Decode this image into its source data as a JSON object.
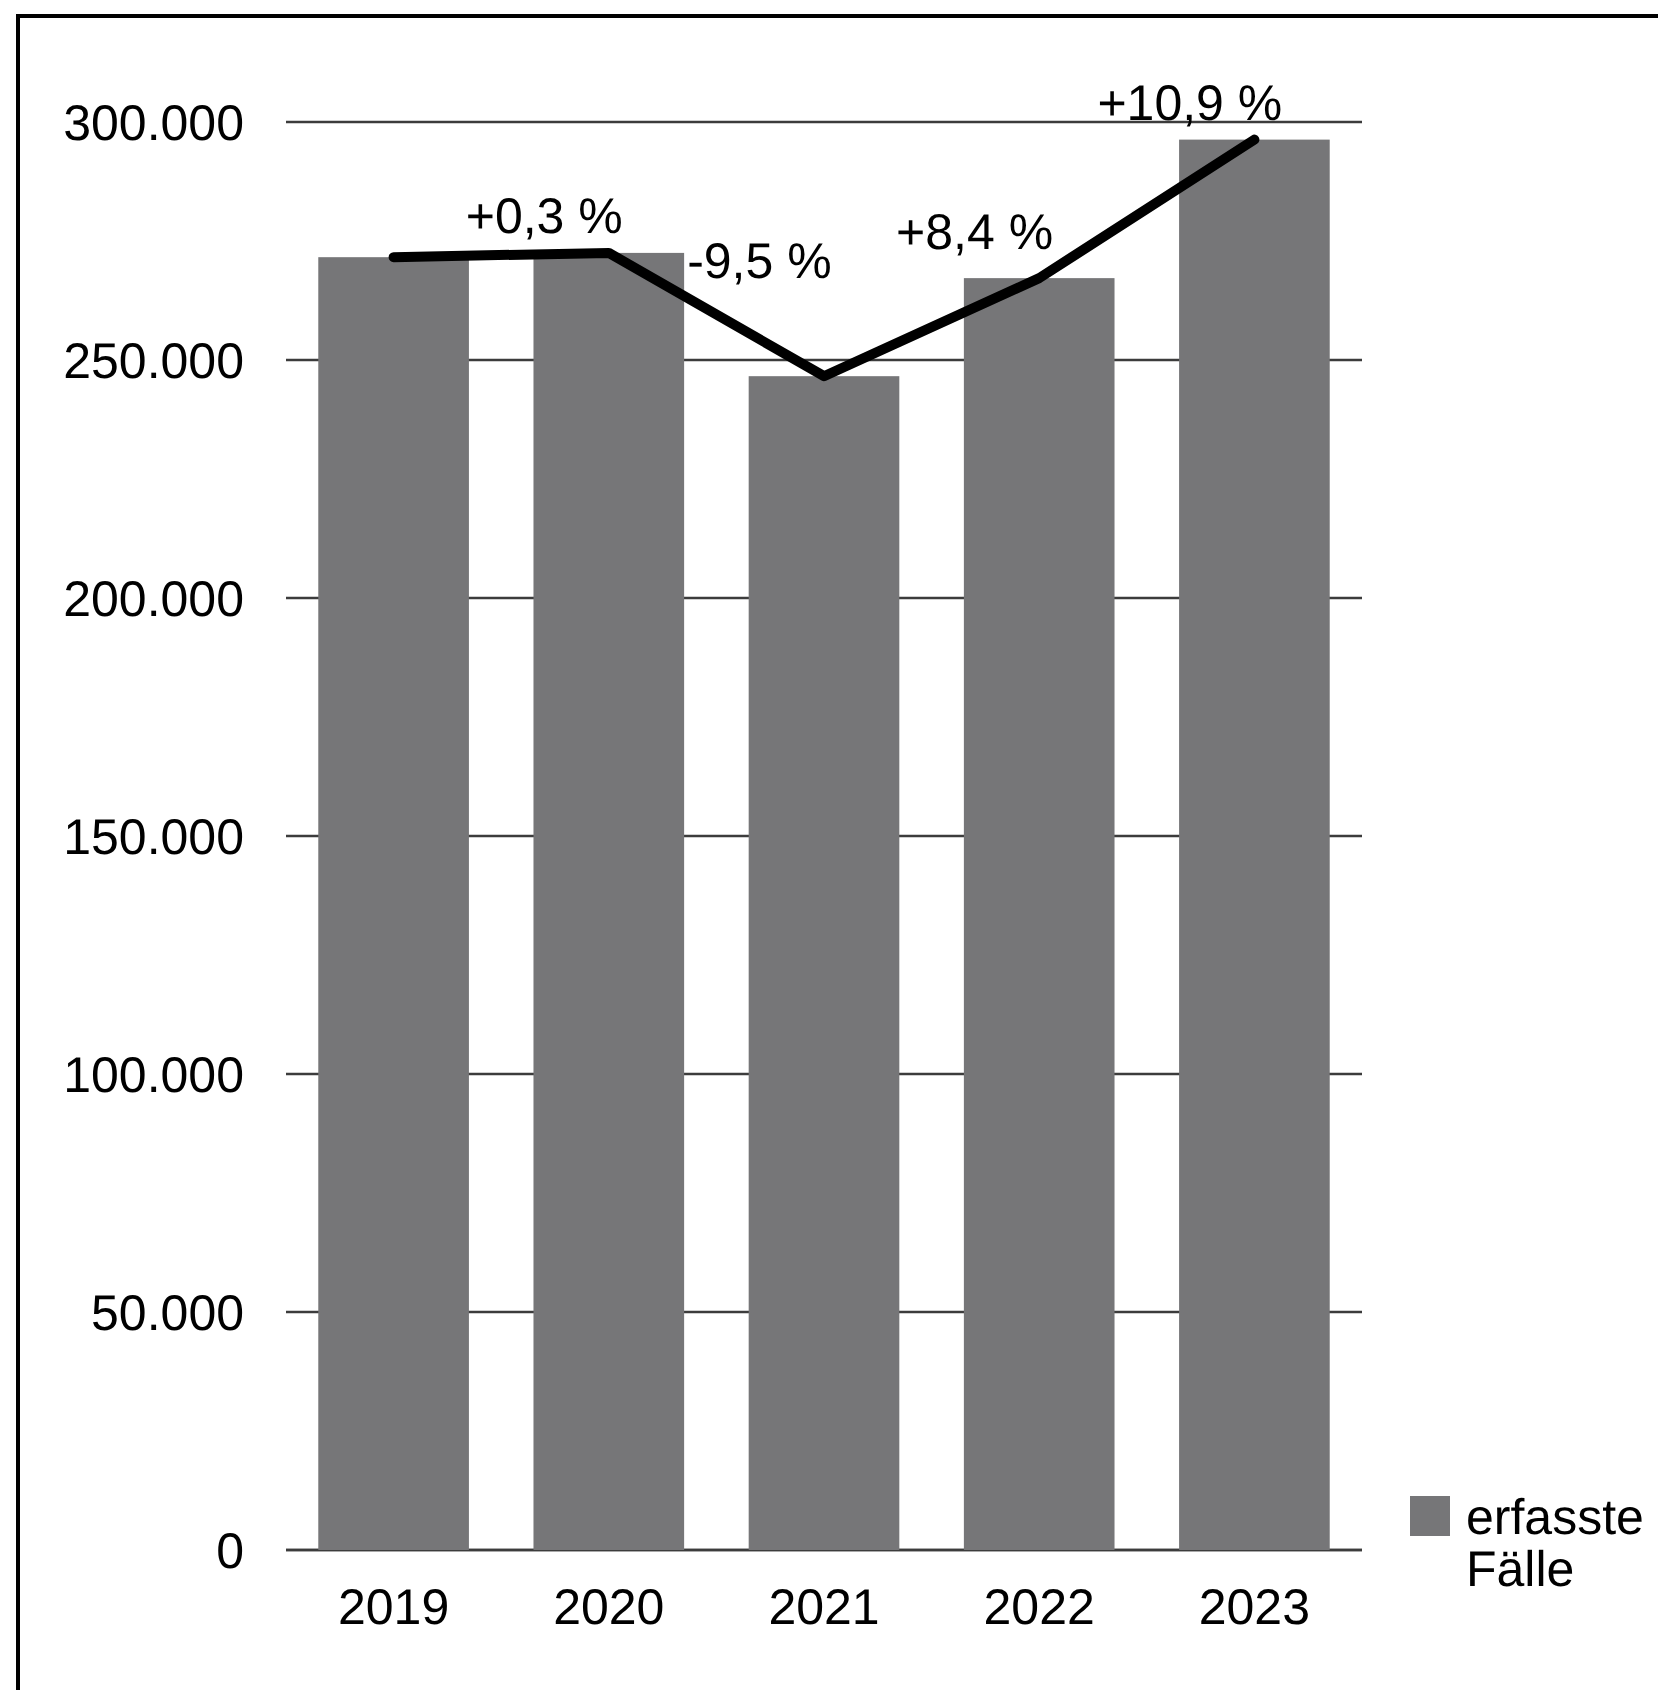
{
  "chart_data": {
    "type": "bar",
    "categories": [
      "2019",
      "2020",
      "2021",
      "2022",
      "2023"
    ],
    "series": [
      {
        "name": "erfasste Fälle",
        "type": "bar",
        "color": "#767678",
        "values": [
          271600,
          272500,
          246600,
          267200,
          296300
        ]
      },
      {
        "type": "line",
        "color": "#000000",
        "values": [
          271600,
          272500,
          246600,
          267200,
          296300
        ]
      }
    ],
    "ylim": [
      0,
      300000
    ],
    "yticks": [
      0,
      {
        "value": 50000,
        "label": "50.000"
      },
      {
        "value": 100000,
        "label": "100.000"
      },
      {
        "value": 150000,
        "label": "150.000"
      },
      {
        "value": 200000,
        "label": "200.000"
      },
      {
        "value": 250000,
        "label": "250.000"
      },
      {
        "value": 300000,
        "label": "300.000"
      }
    ],
    "grid": "y",
    "legend": "bottom right",
    "annotations": [
      {
        "text": "+0,3 %",
        "x": "2020",
        "y": 272500
      },
      {
        "text": "-9,5 %",
        "x": "2021",
        "y": 246600
      },
      {
        "text": "+8,4 %",
        "x": "2022",
        "y": 267200
      },
      {
        "text": "+10,9 %",
        "x": "2023",
        "y": 296300
      }
    ]
  }
}
